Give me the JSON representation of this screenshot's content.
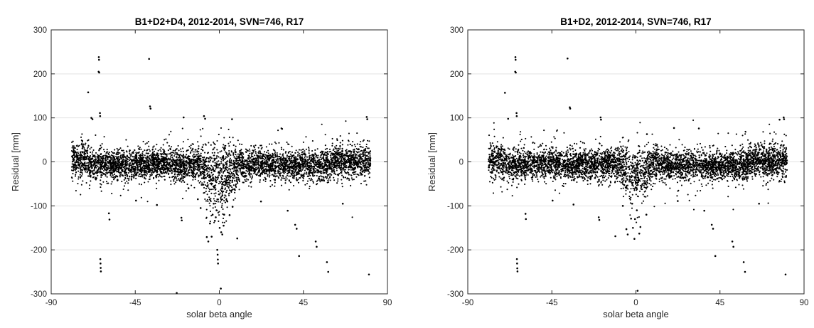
{
  "chart_data": [
    {
      "type": "scatter",
      "title": "B1+D2+D4, 2012-2014, SVN=746, R17",
      "xlabel": "solar beta angle",
      "ylabel": "Residual [mm]",
      "xlim": [
        -90,
        90
      ],
      "ylim": [
        -300,
        300
      ],
      "xticks": [
        "-90",
        "-45",
        "0",
        "45",
        "90"
      ],
      "yticks": [
        "300",
        "200",
        "100",
        "0",
        "-100",
        "-200",
        "-300"
      ],
      "grid": "horizontal",
      "point_color": "#000000",
      "points": [
        [
          -64.5,
          238
        ],
        [
          -64.4,
          232
        ],
        [
          -64.6,
          205
        ],
        [
          -64.3,
          203
        ],
        [
          -37.6,
          234
        ],
        [
          -70.2,
          158
        ],
        [
          -63.9,
          111
        ],
        [
          -63.8,
          104
        ],
        [
          -68.5,
          100
        ],
        [
          -67.9,
          97
        ],
        [
          -37.1,
          126
        ],
        [
          -36.8,
          121
        ],
        [
          -19.1,
          101
        ],
        [
          -8.2,
          104
        ],
        [
          -7.6,
          98
        ],
        [
          6.8,
          97
        ],
        [
          33.6,
          75
        ],
        [
          78.9,
          102
        ],
        [
          79.2,
          97
        ],
        [
          -63.7,
          -221
        ],
        [
          -63.6,
          -231
        ],
        [
          -63.5,
          -241
        ],
        [
          -63.4,
          -249
        ],
        [
          -59.1,
          -117
        ],
        [
          -58.8,
          -131
        ],
        [
          -44.6,
          -88
        ],
        [
          -33.4,
          -98
        ],
        [
          -20.3,
          -127
        ],
        [
          -20.1,
          -133
        ],
        [
          -16.5,
          -60
        ],
        [
          -22.8,
          -298
        ],
        [
          -6.7,
          -171
        ],
        [
          -5.9,
          -181
        ],
        [
          -4.1,
          -170
        ],
        [
          -1.9,
          -126
        ],
        [
          -2.4,
          -134
        ],
        [
          -1.1,
          -200
        ],
        [
          -0.9,
          -211
        ],
        [
          -0.8,
          -222
        ],
        [
          -0.7,
          -231
        ],
        [
          0.8,
          -288
        ],
        [
          1.6,
          -165
        ],
        [
          2.3,
          -145
        ],
        [
          5.5,
          -121
        ],
        [
          7.1,
          -102
        ],
        [
          9.6,
          -174
        ],
        [
          22.3,
          -90
        ],
        [
          36.6,
          -111
        ],
        [
          40.6,
          -143
        ],
        [
          41.4,
          -152
        ],
        [
          42.7,
          -214
        ],
        [
          51.6,
          -181
        ],
        [
          52.1,
          -193
        ],
        [
          57.6,
          -228
        ],
        [
          58.3,
          -250
        ],
        [
          66.1,
          -95
        ],
        [
          80.1,
          -256
        ],
        [
          -3,
          -95
        ],
        [
          -1.5,
          -110
        ],
        [
          0.2,
          -150
        ],
        [
          1,
          -160
        ],
        [
          2.6,
          -120
        ],
        [
          -5,
          -140
        ],
        [
          -3.6,
          -120
        ],
        [
          4.3,
          -90
        ],
        [
          -10,
          -105
        ],
        [
          -11.5,
          -85
        ]
      ]
    },
    {
      "type": "scatter",
      "title": "B1+D2, 2012-2014, SVN=746, R17",
      "xlabel": "solar beta angle",
      "ylabel": "Residual [mm]",
      "xlim": [
        -90,
        90
      ],
      "ylim": [
        -300,
        300
      ],
      "xticks": [
        "-90",
        "-45",
        "0",
        "45",
        "90"
      ],
      "yticks": [
        "300",
        "200",
        "100",
        "0",
        "-100",
        "-200",
        "-300"
      ],
      "grid": "horizontal",
      "point_color": "#000000",
      "points": [
        [
          -64.5,
          238
        ],
        [
          -64.4,
          232
        ],
        [
          -64.6,
          205
        ],
        [
          -64.3,
          203
        ],
        [
          -36.6,
          235
        ],
        [
          -70.1,
          157
        ],
        [
          -63.9,
          111
        ],
        [
          -63.8,
          104
        ],
        [
          -68.4,
          98
        ],
        [
          -35.4,
          124
        ],
        [
          -35.2,
          121
        ],
        [
          -18.9,
          101
        ],
        [
          -18.7,
          96
        ],
        [
          5.9,
          63
        ],
        [
          20.4,
          77
        ],
        [
          33.7,
          76
        ],
        [
          76.9,
          96
        ],
        [
          79.1,
          101
        ],
        [
          79.3,
          97
        ],
        [
          -63.7,
          -221
        ],
        [
          -63.6,
          -231
        ],
        [
          -63.5,
          -242
        ],
        [
          -63.4,
          -249
        ],
        [
          -59.1,
          -118
        ],
        [
          -58.9,
          -130
        ],
        [
          -44.6,
          -88
        ],
        [
          -33.4,
          -97
        ],
        [
          -19.9,
          -126
        ],
        [
          -19.6,
          -132
        ],
        [
          -11,
          -169
        ],
        [
          -5.1,
          -153
        ],
        [
          -4.4,
          -165
        ],
        [
          -2.6,
          -129
        ],
        [
          -1.6,
          -150
        ],
        [
          -0.8,
          -175
        ],
        [
          0.9,
          -293
        ],
        [
          1.8,
          -163
        ],
        [
          2.4,
          -148
        ],
        [
          5.6,
          -120
        ],
        [
          22.4,
          -89
        ],
        [
          36.6,
          -111
        ],
        [
          40.6,
          -143
        ],
        [
          41.3,
          -152
        ],
        [
          42.5,
          -214
        ],
        [
          51.6,
          -181
        ],
        [
          52.2,
          -193
        ],
        [
          57.7,
          -228
        ],
        [
          58.4,
          -250
        ],
        [
          65.9,
          -95
        ],
        [
          80.1,
          -256
        ],
        [
          -2,
          -95
        ],
        [
          0.5,
          -110
        ],
        [
          -7,
          -100
        ],
        [
          -0.5,
          -130
        ]
      ]
    }
  ]
}
